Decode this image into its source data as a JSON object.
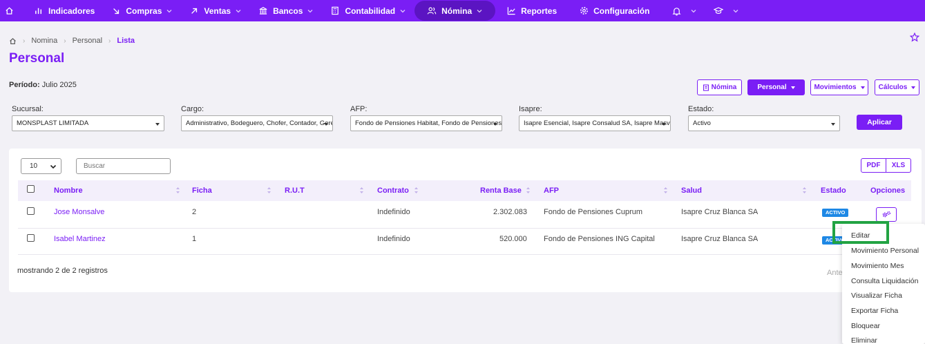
{
  "nav": {
    "indicadores": "Indicadores",
    "compras": "Compras",
    "ventas": "Ventas",
    "bancos": "Bancos",
    "contabilidad": "Contabilidad",
    "nomina": "Nómina",
    "reportes": "Reportes",
    "configuracion": "Configuración"
  },
  "breadcrumb": {
    "level1": "Nomina",
    "level2": "Personal",
    "current": "Lista"
  },
  "page": {
    "title": "Personal",
    "periodo_label": "Período:",
    "periodo_value": "Julio 2025"
  },
  "toolbar": {
    "nomina": "Nómina",
    "personal": "Personal",
    "movimientos": "Movimientos",
    "calculos": "Cálculos"
  },
  "filters": {
    "sucursal": {
      "label": "Sucursal:",
      "value": "MONSPLAST LIMITADA"
    },
    "cargo": {
      "label": "Cargo:",
      "value": "Administrativo, Bodeguero, Chofer, Contador, Gerente"
    },
    "afp": {
      "label": "AFP:",
      "value": "Fondo de Pensiones Habitat, Fondo de Pensiones Cuprum"
    },
    "isapre": {
      "label": "Isapre:",
      "value": "Isapre Esencial, Isapre Consalud SA, Isapre Masvida"
    },
    "estado": {
      "label": "Estado:",
      "value": "Activo"
    },
    "aplicar": "Aplicar"
  },
  "table": {
    "page_length": "10",
    "search_placeholder": "Buscar",
    "export_pdf": "PDF",
    "export_xls": "XLS",
    "headers": {
      "nombre": "Nombre",
      "ficha": "Ficha",
      "rut": "R.U.T",
      "contrato": "Contrato",
      "renta": "Renta Base",
      "afp": "AFP",
      "salud": "Salud",
      "estado": "Estado",
      "opciones": "Opciones"
    },
    "rows": [
      {
        "nombre": "Jose Monsalve",
        "ficha": "2",
        "rut": "",
        "contrato": "Indefinido",
        "renta": "2.302.083",
        "afp": "Fondo de Pensiones Cuprum",
        "salud": "Isapre Cruz Blanca SA",
        "estado": "ACTIVO"
      },
      {
        "nombre": "Isabel Martinez",
        "ficha": "1",
        "rut": "",
        "contrato": "Indefinido",
        "renta": "520.000",
        "afp": "Fondo de Pensiones ING Capital",
        "salud": "Isapre Cruz Blanca SA",
        "estado": "ACTIVO"
      }
    ],
    "footer": "mostrando 2 de 2 registros",
    "prev": "Anterior"
  },
  "options_menu": [
    "Editar",
    "Movimiento Personal",
    "Movimiento Mes",
    "Consulta Liquidación",
    "Visualizar Ficha",
    "Exportar Ficha",
    "Bloquear",
    "Eliminar"
  ],
  "colors": {
    "primary": "#7a1ef5",
    "nav_active": "#5b14c2",
    "badge": "#1e88e5",
    "highlight": "#22a343"
  }
}
